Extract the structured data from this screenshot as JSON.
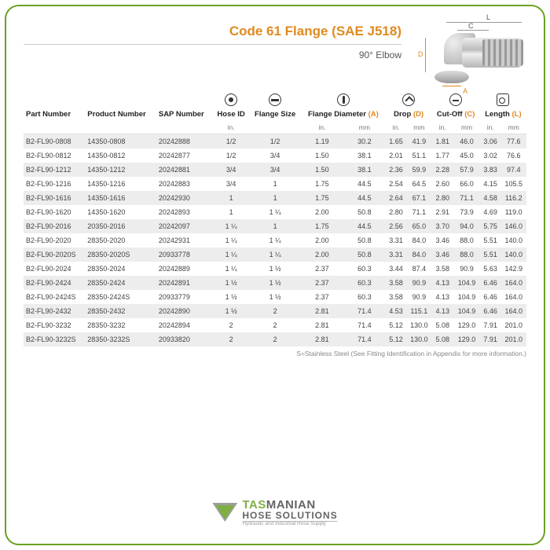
{
  "header": {
    "title": "Code 61 Flange (SAE J518)",
    "subtitle": "90° Elbow"
  },
  "columns": {
    "part": "Part Number",
    "product": "Product Number",
    "sap": "SAP Number",
    "hose_id": "Hose ID",
    "flange_size": "Flange Size",
    "flange_dia": "Flange Diameter",
    "drop": "Drop",
    "cutoff": "Cut-Off",
    "length": "Length",
    "suffix_a": "(A)",
    "suffix_d": "(D)",
    "suffix_c": "(C)",
    "suffix_l": "(L)",
    "unit_in": "in.",
    "unit_mm": "mm"
  },
  "rows": [
    {
      "part": "B2-FL90-0808",
      "product": "14350-0808",
      "sap": "20242888",
      "hose": "1/2",
      "flange": "1/2",
      "a_in": "1.19",
      "a_mm": "30.2",
      "d_in": "1.65",
      "d_mm": "41.9",
      "c_in": "1.81",
      "c_mm": "46.0",
      "l_in": "3.06",
      "l_mm": "77.6"
    },
    {
      "part": "B2-FL90-0812",
      "product": "14350-0812",
      "sap": "20242877",
      "hose": "1/2",
      "flange": "3/4",
      "a_in": "1.50",
      "a_mm": "38.1",
      "d_in": "2.01",
      "d_mm": "51.1",
      "c_in": "1.77",
      "c_mm": "45.0",
      "l_in": "3.02",
      "l_mm": "76.6"
    },
    {
      "part": "B2-FL90-1212",
      "product": "14350-1212",
      "sap": "20242881",
      "hose": "3/4",
      "flange": "3/4",
      "a_in": "1.50",
      "a_mm": "38.1",
      "d_in": "2.36",
      "d_mm": "59.9",
      "c_in": "2.28",
      "c_mm": "57.9",
      "l_in": "3.83",
      "l_mm": "97.4"
    },
    {
      "part": "B2-FL90-1216",
      "product": "14350-1216",
      "sap": "20242883",
      "hose": "3/4",
      "flange": "1",
      "a_in": "1.75",
      "a_mm": "44.5",
      "d_in": "2.54",
      "d_mm": "64.5",
      "c_in": "2.60",
      "c_mm": "66.0",
      "l_in": "4.15",
      "l_mm": "105.5"
    },
    {
      "part": "B2-FL90-1616",
      "product": "14350-1616",
      "sap": "20242930",
      "hose": "1",
      "flange": "1",
      "a_in": "1.75",
      "a_mm": "44.5",
      "d_in": "2.64",
      "d_mm": "67.1",
      "c_in": "2.80",
      "c_mm": "71.1",
      "l_in": "4.58",
      "l_mm": "116.2"
    },
    {
      "part": "B2-FL90-1620",
      "product": "14350-1620",
      "sap": "20242893",
      "hose": "1",
      "flange": "1 ¼",
      "a_in": "2.00",
      "a_mm": "50.8",
      "d_in": "2.80",
      "d_mm": "71.1",
      "c_in": "2.91",
      "c_mm": "73.9",
      "l_in": "4.69",
      "l_mm": "119.0"
    },
    {
      "part": "B2-FL90-2016",
      "product": "20350-2016",
      "sap": "20242097",
      "hose": "1 ¼",
      "flange": "1",
      "a_in": "1.75",
      "a_mm": "44.5",
      "d_in": "2.56",
      "d_mm": "65.0",
      "c_in": "3.70",
      "c_mm": "94.0",
      "l_in": "5.75",
      "l_mm": "146.0"
    },
    {
      "part": "B2-FL90-2020",
      "product": "28350-2020",
      "sap": "20242931",
      "hose": "1 ¼",
      "flange": "1 ¼",
      "a_in": "2.00",
      "a_mm": "50.8",
      "d_in": "3.31",
      "d_mm": "84.0",
      "c_in": "3.46",
      "c_mm": "88.0",
      "l_in": "5.51",
      "l_mm": "140.0"
    },
    {
      "part": "B2-FL90-2020S",
      "product": "28350-2020S",
      "sap": "20933778",
      "hose": "1 ¼",
      "flange": "1 ¼",
      "a_in": "2.00",
      "a_mm": "50.8",
      "d_in": "3.31",
      "d_mm": "84.0",
      "c_in": "3.46",
      "c_mm": "88.0",
      "l_in": "5.51",
      "l_mm": "140.0"
    },
    {
      "part": "B2-FL90-2024",
      "product": "28350-2024",
      "sap": "20242889",
      "hose": "1 ¼",
      "flange": "1 ½",
      "a_in": "2.37",
      "a_mm": "60.3",
      "d_in": "3.44",
      "d_mm": "87.4",
      "c_in": "3.58",
      "c_mm": "90.9",
      "l_in": "5.63",
      "l_mm": "142.9"
    },
    {
      "part": "B2-FL90-2424",
      "product": "28350-2424",
      "sap": "20242891",
      "hose": "1 ½",
      "flange": "1 ½",
      "a_in": "2.37",
      "a_mm": "60.3",
      "d_in": "3.58",
      "d_mm": "90.9",
      "c_in": "4.13",
      "c_mm": "104.9",
      "l_in": "6.46",
      "l_mm": "164.0"
    },
    {
      "part": "B2-FL90-2424S",
      "product": "28350-2424S",
      "sap": "20933779",
      "hose": "1 ½",
      "flange": "1 ½",
      "a_in": "2.37",
      "a_mm": "60.3",
      "d_in": "3.58",
      "d_mm": "90.9",
      "c_in": "4.13",
      "c_mm": "104.9",
      "l_in": "6.46",
      "l_mm": "164.0"
    },
    {
      "part": "B2-FL90-2432",
      "product": "28350-2432",
      "sap": "20242890",
      "hose": "1 ½",
      "flange": "2",
      "a_in": "2.81",
      "a_mm": "71.4",
      "d_in": "4.53",
      "d_mm": "115.1",
      "c_in": "4.13",
      "c_mm": "104.9",
      "l_in": "6.46",
      "l_mm": "164.0"
    },
    {
      "part": "B2-FL90-3232",
      "product": "28350-3232",
      "sap": "20242894",
      "hose": "2",
      "flange": "2",
      "a_in": "2.81",
      "a_mm": "71.4",
      "d_in": "5.12",
      "d_mm": "130.0",
      "c_in": "5.08",
      "c_mm": "129.0",
      "l_in": "7.91",
      "l_mm": "201.0"
    },
    {
      "part": "B2-FL90-3232S",
      "product": "28350-3232S",
      "sap": "20933820",
      "hose": "2",
      "flange": "2",
      "a_in": "2.81",
      "a_mm": "71.4",
      "d_in": "5.12",
      "d_mm": "130.0",
      "c_in": "5.08",
      "c_mm": "129.0",
      "l_in": "7.91",
      "l_mm": "201.0"
    }
  ],
  "footnote": "S=Stainless Steel (See Fitting Identification in Appendix for more information.)",
  "logo": {
    "line1a": "TAS",
    "line1b": "MANIAN",
    "line2": "HOSE SOLUTIONS",
    "line3": "Hydraulic and Industrial Hose Supply"
  },
  "colors": {
    "accent": "#e08a1f",
    "brand_green": "#6aa122",
    "row_stripe": "#ecedec"
  }
}
